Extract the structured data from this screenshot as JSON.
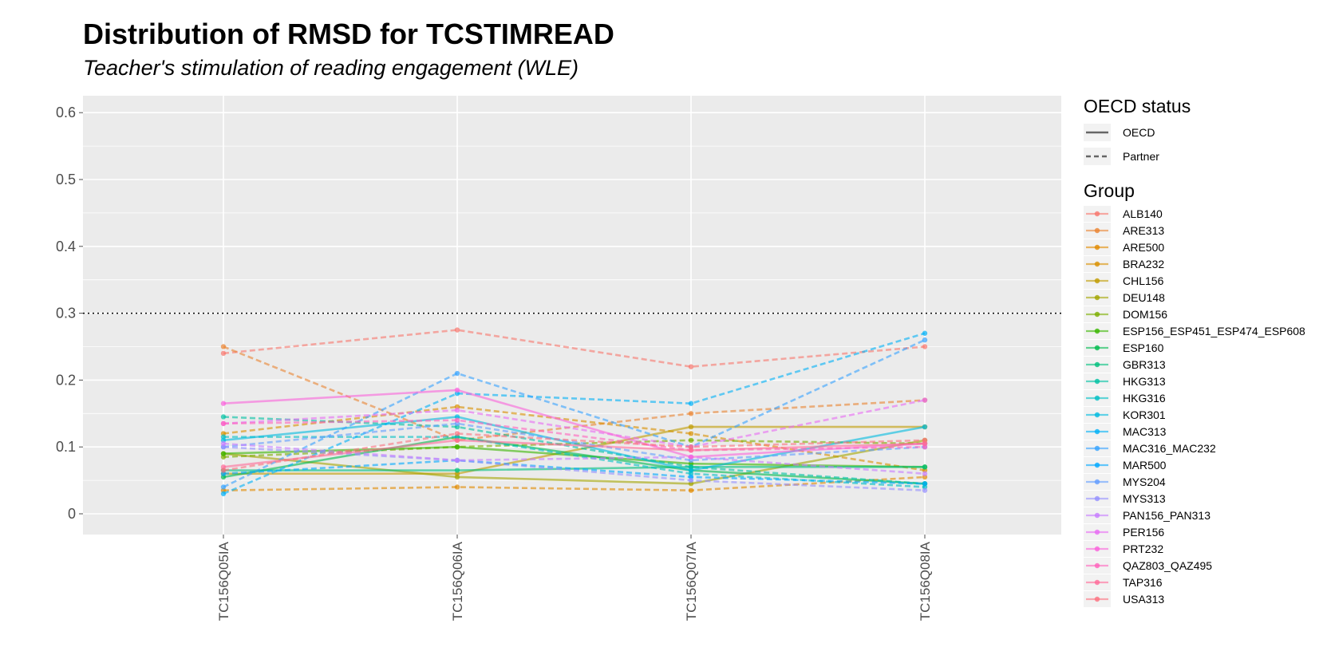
{
  "chart_data": {
    "type": "line",
    "title": "Distribution of RMSD for TCSTIMREAD",
    "subtitle": "Teacher's stimulation of reading engagement (WLE)",
    "xlabel": "",
    "ylabel": "",
    "categories": [
      "TC156Q05IA",
      "TC156Q06IA",
      "TC156Q07IA",
      "TC156Q08IA"
    ],
    "ylim": [
      -0.03,
      0.63
    ],
    "yticks": [
      "0",
      "0.1",
      "0.2",
      "0.3",
      "0.4",
      "0.5",
      "0.6"
    ],
    "ytick_values": [
      0,
      0.1,
      0.2,
      0.3,
      0.4,
      0.5,
      0.6
    ],
    "reference_line": {
      "y": 0.3,
      "style": "dotted"
    },
    "grid": true,
    "legend_position": "right",
    "linetype_legend": {
      "title": "OECD status",
      "entries": [
        {
          "label": "OECD",
          "style": "solid"
        },
        {
          "label": "Partner",
          "style": "dashed"
        }
      ]
    },
    "group_legend_title": "Group",
    "series": [
      {
        "name": "ALB140",
        "color": "#F8766D",
        "status": "Partner",
        "values": [
          0.24,
          0.275,
          0.22,
          0.25
        ]
      },
      {
        "name": "ARE313",
        "color": "#EA8331",
        "status": "Partner",
        "values": [
          0.25,
          0.11,
          0.15,
          0.17
        ]
      },
      {
        "name": "ARE500",
        "color": "#E18A00",
        "status": "Partner",
        "values": [
          0.035,
          0.04,
          0.035,
          0.055
        ]
      },
      {
        "name": "BRA232",
        "color": "#D89000",
        "status": "Partner",
        "values": [
          0.12,
          0.16,
          0.12,
          0.065
        ]
      },
      {
        "name": "CHL156",
        "color": "#C09B00",
        "status": "OECD",
        "values": [
          0.06,
          0.06,
          0.13,
          0.13
        ]
      },
      {
        "name": "DEU148",
        "color": "#A3A500",
        "status": "OECD",
        "values": [
          0.09,
          0.055,
          0.045,
          0.11
        ]
      },
      {
        "name": "DOM156",
        "color": "#7CAE00",
        "status": "Partner",
        "values": [
          0.085,
          0.1,
          0.11,
          0.105
        ]
      },
      {
        "name": "ESP156_ESP451_ESP474_ESP608",
        "color": "#39B600",
        "status": "OECD",
        "values": [
          0.09,
          0.1,
          0.075,
          0.07
        ]
      },
      {
        "name": "ESP160",
        "color": "#00BB4E",
        "status": "OECD",
        "values": [
          0.055,
          0.115,
          0.065,
          0.045
        ]
      },
      {
        "name": "GBR313",
        "color": "#00BF7D",
        "status": "OECD",
        "values": [
          0.065,
          0.065,
          0.07,
          0.07
        ]
      },
      {
        "name": "HKG313",
        "color": "#00C1A3",
        "status": "Partner",
        "values": [
          0.145,
          0.13,
          0.07,
          0.045
        ]
      },
      {
        "name": "HKG316",
        "color": "#00BFC4",
        "status": "Partner",
        "values": [
          0.115,
          0.115,
          0.06,
          0.04
        ]
      },
      {
        "name": "KOR301",
        "color": "#00BAE0",
        "status": "OECD",
        "values": [
          0.11,
          0.145,
          0.065,
          0.13
        ]
      },
      {
        "name": "MAC313",
        "color": "#00B0F6",
        "status": "Partner",
        "values": [
          0.03,
          0.18,
          0.165,
          0.27
        ]
      },
      {
        "name": "MAC316_MAC232",
        "color": "#35A2FF",
        "status": "Partner",
        "values": [
          0.04,
          0.21,
          0.1,
          0.26
        ]
      },
      {
        "name": "MAR500",
        "color": "#00A9FF",
        "status": "Partner",
        "values": [
          0.06,
          0.08,
          0.055,
          0.045
        ]
      },
      {
        "name": "MYS204",
        "color": "#619CFF",
        "status": "Partner",
        "values": [
          0.1,
          0.135,
          0.08,
          0.1
        ]
      },
      {
        "name": "MYS313",
        "color": "#9590FF",
        "status": "Partner",
        "values": [
          0.1,
          0.08,
          0.05,
          0.035
        ]
      },
      {
        "name": "PAN156_PAN313",
        "color": "#C77CFF",
        "status": "Partner",
        "values": [
          0.105,
          0.08,
          0.085,
          0.06
        ]
      },
      {
        "name": "PER156",
        "color": "#E76BF3",
        "status": "Partner",
        "values": [
          0.135,
          0.155,
          0.1,
          0.17
        ]
      },
      {
        "name": "PRT232",
        "color": "#FA62DB",
        "status": "OECD",
        "values": [
          0.165,
          0.185,
          0.085,
          0.105
        ]
      },
      {
        "name": "QAZ803_QAZ495",
        "color": "#FF62BC",
        "status": "Partner",
        "values": [
          0.135,
          0.14,
          0.095,
          0.1
        ]
      },
      {
        "name": "TAP316",
        "color": "#FF6A98",
        "status": "OECD",
        "values": [
          0.07,
          0.11,
          0.095,
          0.105
        ]
      },
      {
        "name": "USA313",
        "color": "#FC717F",
        "status": "Partner",
        "values": [
          0.065,
          0.12,
          0.1,
          0.11
        ]
      }
    ]
  }
}
